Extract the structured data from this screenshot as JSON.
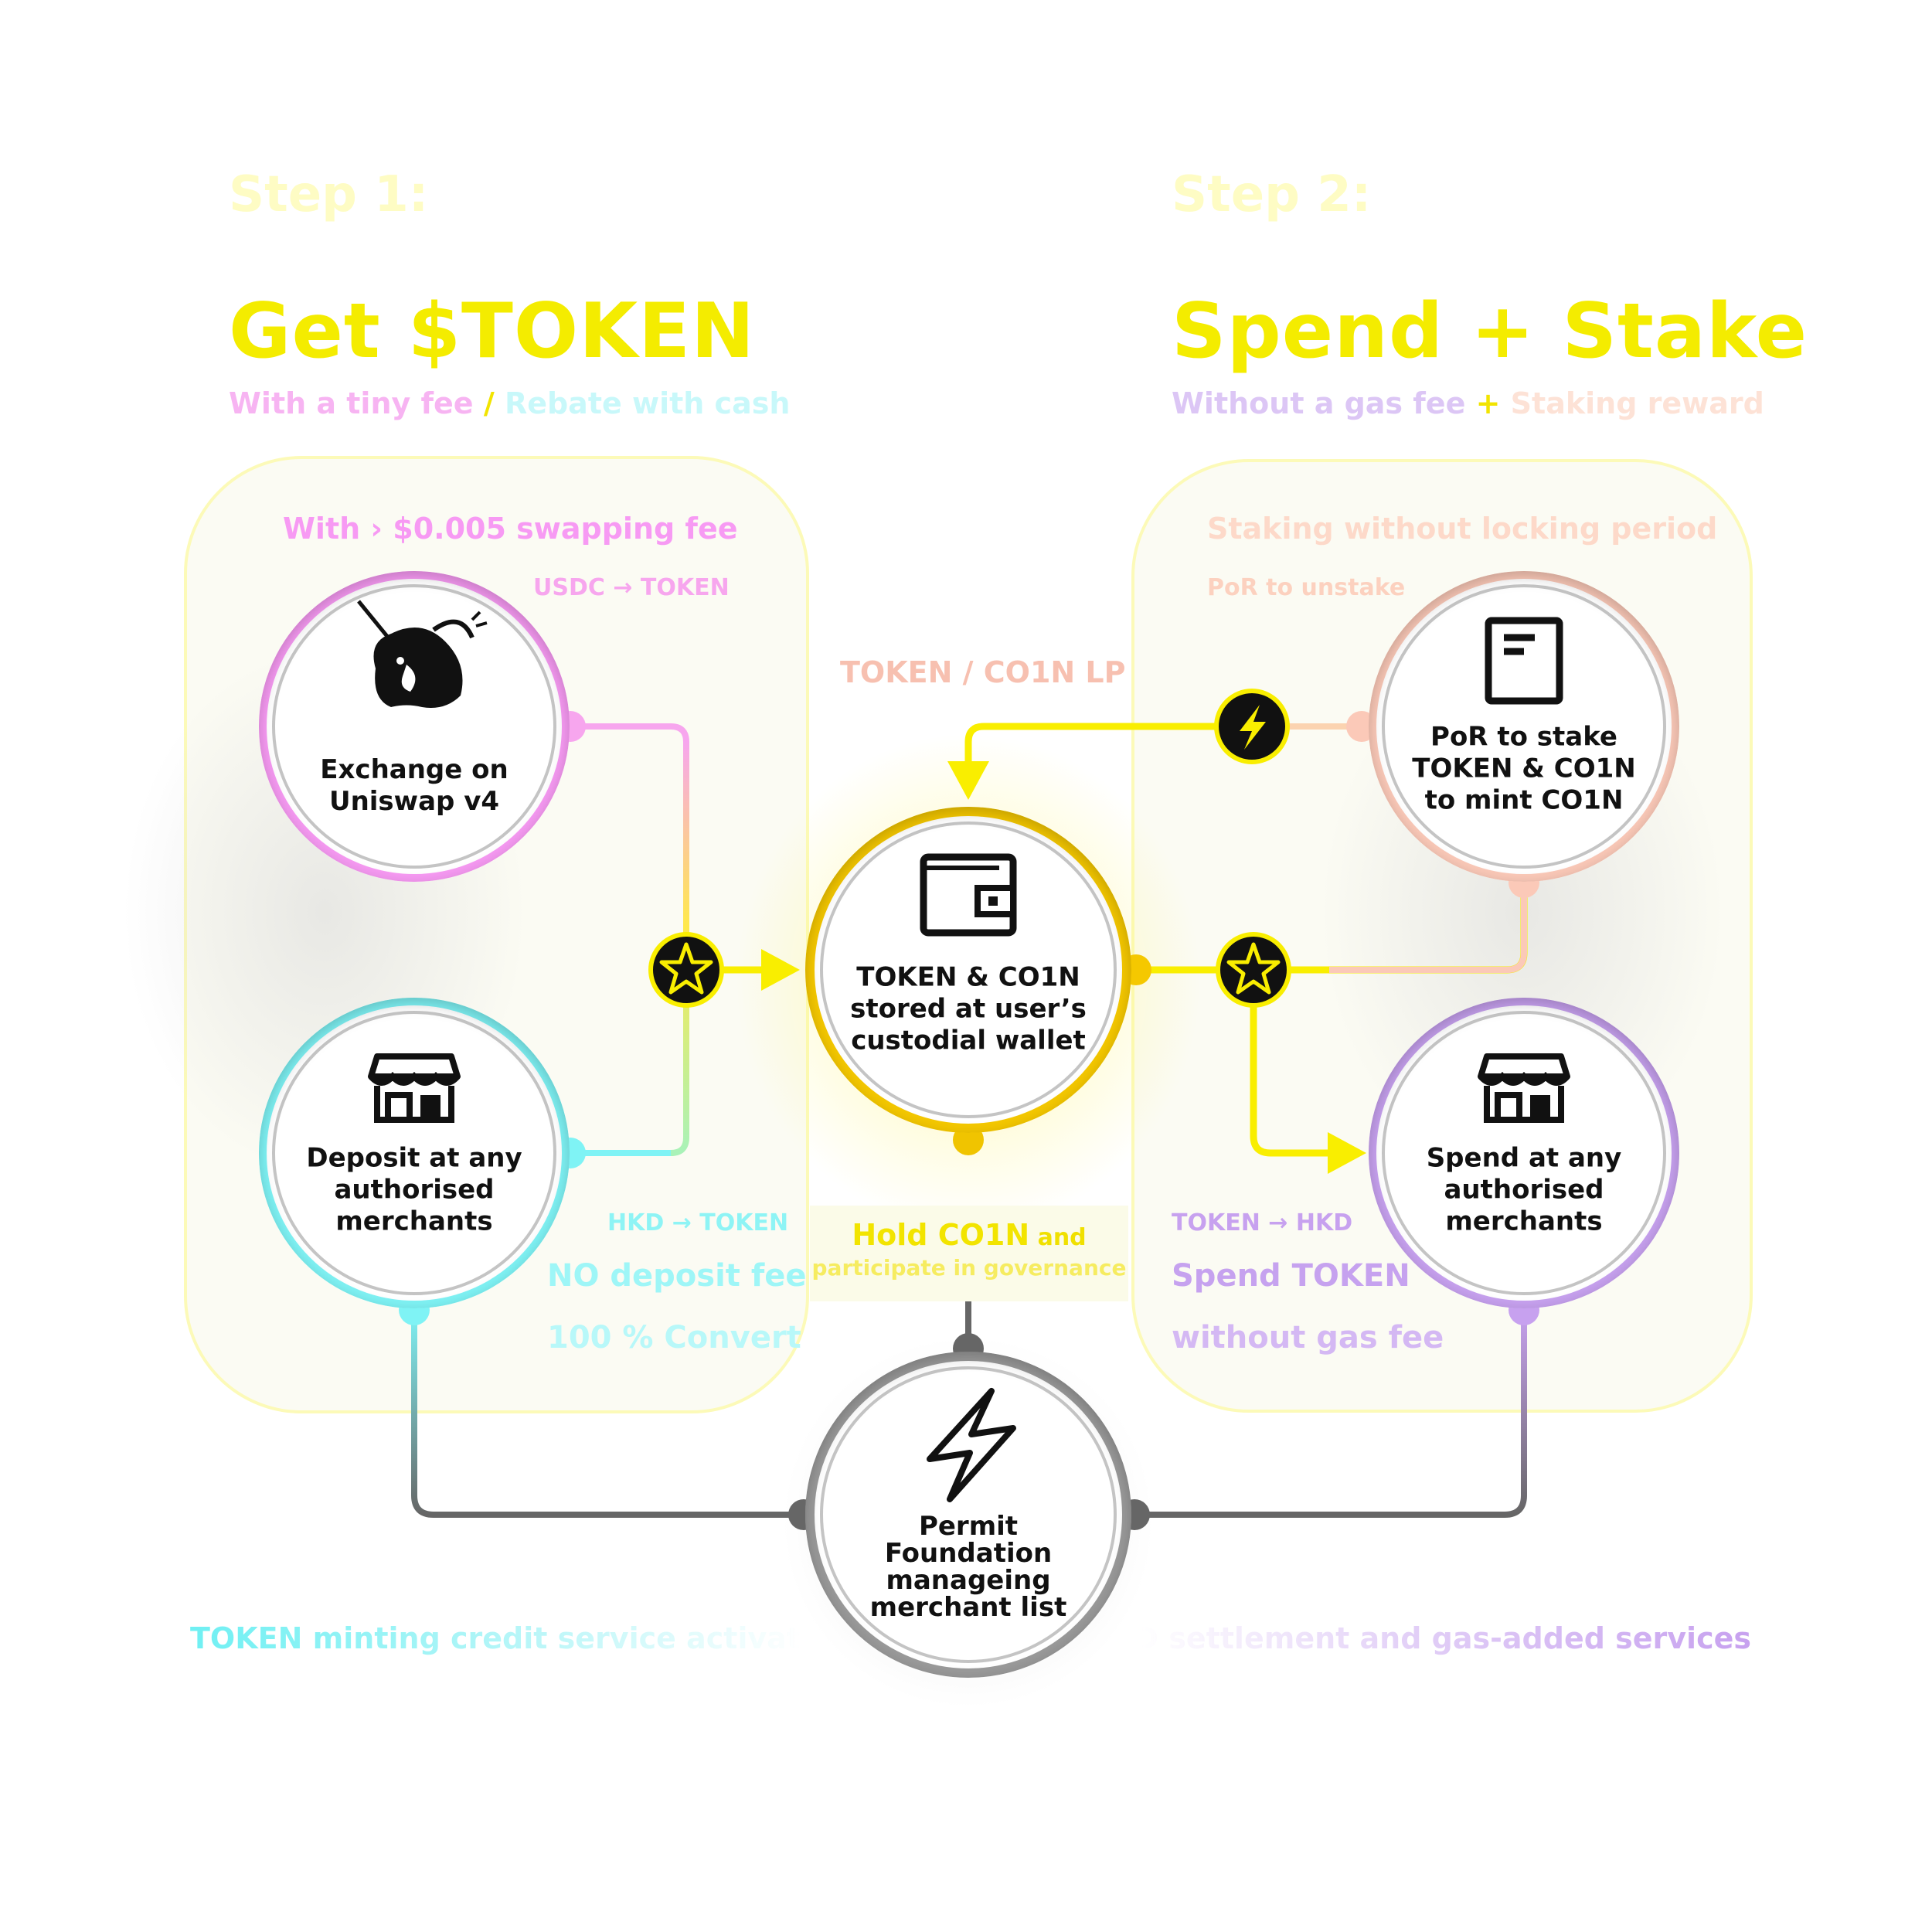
{
  "step1": {
    "step_label": "Step 1:",
    "title": "Get $TOKEN",
    "subtitle_a": "With a tiny fee",
    "subtitle_sep": " / ",
    "subtitle_b": "Rebate with cash"
  },
  "step2": {
    "step_label": "Step 2:",
    "title": "Spend + Stake",
    "subtitle_a": "Without a gas fee",
    "subtitle_sep": " + ",
    "subtitle_b": "Staking reward"
  },
  "left_panel": {
    "fee_label": "With › $0.005 swapping fee",
    "pair_label": "USDC → TOKEN",
    "deposit_pair": "HKD → TOKEN",
    "deposit_note_1": "NO deposit fee",
    "deposit_note_2": "100 % Convert"
  },
  "right_panel": {
    "stake_label": "Staking without locking period",
    "unstake_label": "PoR to unstake",
    "spend_pair": "TOKEN → HKD",
    "spend_note_1": "Spend TOKEN",
    "spend_note_2": "without gas fee"
  },
  "lp_label": "TOKEN / CO1N LP",
  "nodes": {
    "uniswap": {
      "line1": "Exchange on",
      "line2": "Uniswap v4",
      "icon": "unicorn-icon"
    },
    "deposit": {
      "line1": "Deposit at any",
      "line2": "authorised",
      "line3": "merchants",
      "icon": "storefront-icon"
    },
    "wallet": {
      "line1": "TOKEN & CO1N",
      "line2": "stored at user’s",
      "line3": "custodial wallet",
      "icon": "wallet-icon"
    },
    "stake": {
      "line1": "PoR to stake",
      "line2": "TOKEN & CO1N",
      "line3": "to mint CO1N",
      "icon": "document-icon"
    },
    "spend": {
      "line1": "Spend at any",
      "line2": "authorised",
      "line3": "merchants",
      "icon": "storefront-icon"
    },
    "foundation": {
      "line1": "Permit",
      "line2": "Foundation",
      "line3": "manageing",
      "line4": "merchant list",
      "icon": "lightning-icon"
    }
  },
  "hold": {
    "strong": "Hold CO1N",
    "and": " and",
    "line2": "participate in governance"
  },
  "bottom": {
    "left_service": "TOKEN minting credit service activation",
    "right_service": "HKD settlement and gas-added services"
  },
  "colors": {
    "yellow": "#f9ee00",
    "pink": "#f79af3",
    "cyan": "#7ff3f5",
    "peach": "#fbc9b8",
    "purple": "#c7a1ef",
    "gray": "#666666",
    "gold": "#f5c800"
  }
}
